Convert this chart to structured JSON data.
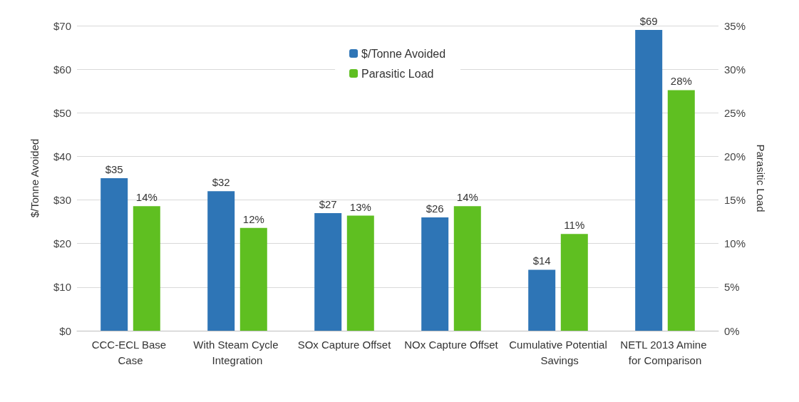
{
  "chart_data": {
    "type": "bar",
    "ylabel": "$/Tonne Avoided",
    "y2label": "Parasitic Load",
    "categories": [
      "CCC-ECL Base Case",
      "With Steam Cycle Integration",
      "SOx Capture Offset",
      "NOx Capture Offset",
      "Cumulative Potential Savings",
      "NETL 2013 Amine for Comparison"
    ],
    "series": [
      {
        "name": "$/Tonne Avoided",
        "color": "#2e75b6",
        "values": [
          35,
          32,
          27,
          26,
          14,
          69
        ],
        "value_labels": [
          "$35",
          "$32",
          "$27",
          "$26",
          "$14",
          "$69"
        ]
      },
      {
        "name": "Parasitic Load",
        "color": "#5fbf21",
        "axis": "y2",
        "values": [
          14.3,
          11.8,
          13.2,
          14.3,
          11.1,
          27.6
        ],
        "value_labels": [
          "14%",
          "12%",
          "13%",
          "14%",
          "11%",
          "28%"
        ]
      }
    ],
    "ylim": [
      0,
      70
    ],
    "yticks": [
      {
        "value": 0,
        "label": "$0"
      },
      {
        "value": 10,
        "label": "$10"
      },
      {
        "value": 20,
        "label": "$20"
      },
      {
        "value": 30,
        "label": "$30"
      },
      {
        "value": 40,
        "label": "$40"
      },
      {
        "value": 50,
        "label": "$50"
      },
      {
        "value": 60,
        "label": "$60"
      },
      {
        "value": 70,
        "label": "$70"
      }
    ],
    "y2lim": [
      0,
      35
    ],
    "y2ticks": [
      {
        "value": 0,
        "label": "0%"
      },
      {
        "value": 5,
        "label": "5%"
      },
      {
        "value": 10,
        "label": "10%"
      },
      {
        "value": 15,
        "label": "15%"
      },
      {
        "value": 20,
        "label": "20%"
      },
      {
        "value": 25,
        "label": "25%"
      },
      {
        "value": 30,
        "label": "30%"
      },
      {
        "value": 35,
        "label": "35%"
      }
    ],
    "grid": "y",
    "legend": "top"
  }
}
